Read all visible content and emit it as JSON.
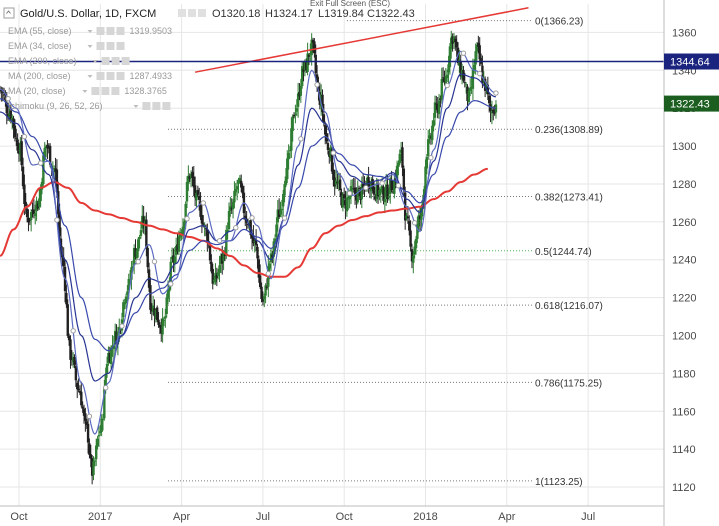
{
  "header": {
    "symbol": "Gold/U.S. Dollar, 1D, FXCM",
    "ohlc": {
      "open": "O1320.18",
      "high": "H1324.17",
      "low": "L1319.84",
      "close": "C1322.43"
    },
    "exit_fullscreen": "Exit Full Screen (ESC)"
  },
  "legend": [
    {
      "label": "EMA (55, close)",
      "value": "1319.9503",
      "value_color": "#1a237e"
    },
    {
      "label": "EMA (34, close)",
      "value": "",
      "value_color": "#9a9a9a"
    },
    {
      "label": "EMA (200, close)",
      "value": "",
      "value_color": "#9a9a9a"
    },
    {
      "label": "MA (200, close)",
      "value": "1287.4933",
      "value_color": "#e53935"
    },
    {
      "label": "MA (20, close)",
      "value": "1328.3765",
      "value_color": "#1a237e"
    },
    {
      "label": "Ichimoku (9, 26, 52, 26)",
      "value": "",
      "value_color": "#9a9a9a"
    }
  ],
  "chart_data": {
    "type": "candlestick",
    "instrument": "Gold/U.S. Dollar",
    "interval": "1D",
    "ylim": [
      1110,
      1375
    ],
    "y_ticks": [
      1120,
      1140,
      1160,
      1180,
      1200,
      1220,
      1240,
      1260,
      1280,
      1300,
      1320,
      1340,
      1360
    ],
    "x_ticks": [
      {
        "label": "Oct",
        "t": 0.7
      },
      {
        "label": "2017",
        "t": 3.7
      },
      {
        "label": "Apr",
        "t": 6.7
      },
      {
        "label": "Jul",
        "t": 9.7
      },
      {
        "label": "Oct",
        "t": 12.7
      },
      {
        "label": "2018",
        "t": 15.7
      },
      {
        "label": "Apr",
        "t": 18.7
      },
      {
        "label": "Jul",
        "t": 21.7
      }
    ],
    "xlim": [
      0,
      24.5
    ],
    "price_anchors": [
      [
        0.0,
        1330
      ],
      [
        0.35,
        1318
      ],
      [
        0.7,
        1300
      ],
      [
        1.0,
        1262
      ],
      [
        1.4,
        1270
      ],
      [
        1.7,
        1300
      ],
      [
        2.0,
        1288
      ],
      [
        2.3,
        1240
      ],
      [
        2.6,
        1190
      ],
      [
        2.9,
        1172
      ],
      [
        3.2,
        1150
      ],
      [
        3.4,
        1128
      ],
      [
        3.7,
        1150
      ],
      [
        4.0,
        1190
      ],
      [
        4.3,
        1200
      ],
      [
        4.7,
        1225
      ],
      [
        5.0,
        1245
      ],
      [
        5.3,
        1260
      ],
      [
        5.6,
        1215
      ],
      [
        6.0,
        1205
      ],
      [
        6.4,
        1240
      ],
      [
        6.7,
        1257
      ],
      [
        7.0,
        1285
      ],
      [
        7.3,
        1270
      ],
      [
        7.6,
        1255
      ],
      [
        7.9,
        1228
      ],
      [
        8.2,
        1240
      ],
      [
        8.5,
        1265
      ],
      [
        8.8,
        1280
      ],
      [
        9.1,
        1262
      ],
      [
        9.4,
        1248
      ],
      [
        9.7,
        1218
      ],
      [
        10.0,
        1240
      ],
      [
        10.3,
        1265
      ],
      [
        10.6,
        1290
      ],
      [
        10.9,
        1320
      ],
      [
        11.2,
        1340
      ],
      [
        11.5,
        1352
      ],
      [
        11.8,
        1325
      ],
      [
        12.1,
        1300
      ],
      [
        12.4,
        1280
      ],
      [
        12.7,
        1270
      ],
      [
        13.0,
        1275
      ],
      [
        13.3,
        1275
      ],
      [
        13.6,
        1282
      ],
      [
        13.9,
        1276
      ],
      [
        14.2,
        1275
      ],
      [
        14.5,
        1280
      ],
      [
        14.8,
        1295
      ],
      [
        15.0,
        1260
      ],
      [
        15.2,
        1243
      ],
      [
        15.5,
        1262
      ],
      [
        15.8,
        1300
      ],
      [
        16.1,
        1320
      ],
      [
        16.4,
        1335
      ],
      [
        16.7,
        1358
      ],
      [
        17.0,
        1340
      ],
      [
        17.3,
        1325
      ],
      [
        17.6,
        1350
      ],
      [
        17.9,
        1332
      ],
      [
        18.1,
        1318
      ],
      [
        18.3,
        1322
      ]
    ],
    "indicators": {
      "ma200": [
        [
          0.0,
          1242
        ],
        [
          0.5,
          1256
        ],
        [
          1.0,
          1268
        ],
        [
          1.5,
          1278
        ],
        [
          2.0,
          1281
        ],
        [
          2.5,
          1278
        ],
        [
          3.0,
          1270
        ],
        [
          3.5,
          1266
        ],
        [
          4.0,
          1264
        ],
        [
          4.5,
          1262
        ],
        [
          5.0,
          1260
        ],
        [
          5.5,
          1258
        ],
        [
          6.0,
          1256
        ],
        [
          6.5,
          1254
        ],
        [
          7.0,
          1252
        ],
        [
          7.5,
          1250
        ],
        [
          8.0,
          1246
        ],
        [
          8.5,
          1242
        ],
        [
          9.0,
          1237
        ],
        [
          9.5,
          1233
        ],
        [
          10.0,
          1231
        ],
        [
          10.5,
          1231
        ],
        [
          11.0,
          1236
        ],
        [
          11.5,
          1246
        ],
        [
          12.0,
          1254
        ],
        [
          12.5,
          1258
        ],
        [
          13.0,
          1261
        ],
        [
          13.5,
          1263
        ],
        [
          14.0,
          1265
        ],
        [
          14.5,
          1266
        ],
        [
          15.0,
          1267
        ],
        [
          15.5,
          1268
        ],
        [
          16.0,
          1272
        ],
        [
          16.5,
          1276
        ],
        [
          17.0,
          1281
        ],
        [
          17.5,
          1285
        ],
        [
          18.0,
          1288
        ]
      ],
      "ema55": [
        [
          0.0,
          1325
        ],
        [
          0.6,
          1318
        ],
        [
          1.2,
          1305
        ],
        [
          1.8,
          1292
        ],
        [
          2.4,
          1258
        ],
        [
          3.0,
          1220
        ],
        [
          3.5,
          1198
        ],
        [
          4.0,
          1192
        ],
        [
          4.5,
          1200
        ],
        [
          5.0,
          1212
        ],
        [
          5.5,
          1222
        ],
        [
          6.0,
          1225
        ],
        [
          6.5,
          1232
        ],
        [
          7.0,
          1245
        ],
        [
          7.5,
          1250
        ],
        [
          8.0,
          1248
        ],
        [
          8.5,
          1250
        ],
        [
          9.0,
          1256
        ],
        [
          9.5,
          1252
        ],
        [
          10.0,
          1246
        ],
        [
          10.5,
          1258
        ],
        [
          11.0,
          1278
        ],
        [
          11.5,
          1300
        ],
        [
          12.0,
          1305
        ],
        [
          12.5,
          1296
        ],
        [
          13.0,
          1290
        ],
        [
          13.5,
          1285
        ],
        [
          14.0,
          1284
        ],
        [
          14.5,
          1282
        ],
        [
          15.0,
          1276
        ],
        [
          15.5,
          1270
        ],
        [
          16.0,
          1285
        ],
        [
          16.5,
          1305
        ],
        [
          17.0,
          1318
        ],
        [
          17.5,
          1324
        ],
        [
          18.3,
          1320
        ]
      ],
      "ema34": [
        [
          0.0,
          1318
        ],
        [
          0.6,
          1312
        ],
        [
          1.2,
          1298
        ],
        [
          1.8,
          1285
        ],
        [
          2.4,
          1240
        ],
        [
          3.0,
          1200
        ],
        [
          3.5,
          1176
        ],
        [
          4.0,
          1180
        ],
        [
          4.5,
          1200
        ],
        [
          5.0,
          1220
        ],
        [
          5.5,
          1230
        ],
        [
          6.0,
          1228
        ],
        [
          6.5,
          1238
        ],
        [
          7.0,
          1256
        ],
        [
          7.5,
          1258
        ],
        [
          8.0,
          1250
        ],
        [
          8.5,
          1255
        ],
        [
          9.0,
          1262
        ],
        [
          9.5,
          1250
        ],
        [
          10.0,
          1240
        ],
        [
          10.5,
          1262
        ],
        [
          11.0,
          1290
        ],
        [
          11.5,
          1320
        ],
        [
          12.0,
          1312
        ],
        [
          12.5,
          1292
        ],
        [
          13.0,
          1284
        ],
        [
          13.5,
          1280
        ],
        [
          14.0,
          1282
        ],
        [
          14.5,
          1286
        ],
        [
          15.0,
          1272
        ],
        [
          15.5,
          1265
        ],
        [
          16.0,
          1292
        ],
        [
          16.5,
          1320
        ],
        [
          17.0,
          1338
        ],
        [
          17.5,
          1336
        ],
        [
          18.3,
          1326
        ]
      ],
      "ma20": [
        [
          0.0,
          1330
        ],
        [
          0.6,
          1320
        ],
        [
          1.2,
          1290
        ],
        [
          1.8,
          1292
        ],
        [
          2.4,
          1230
        ],
        [
          3.0,
          1175
        ],
        [
          3.5,
          1148
        ],
        [
          4.0,
          1175
        ],
        [
          4.5,
          1205
        ],
        [
          5.0,
          1238
        ],
        [
          5.5,
          1248
        ],
        [
          6.0,
          1222
        ],
        [
          6.5,
          1230
        ],
        [
          7.0,
          1265
        ],
        [
          7.5,
          1270
        ],
        [
          8.0,
          1250
        ],
        [
          8.5,
          1250
        ],
        [
          9.0,
          1270
        ],
        [
          9.5,
          1258
        ],
        [
          10.0,
          1230
        ],
        [
          10.5,
          1262
        ],
        [
          11.0,
          1300
        ],
        [
          11.5,
          1340
        ],
        [
          12.0,
          1318
        ],
        [
          12.5,
          1285
        ],
        [
          13.0,
          1274
        ],
        [
          13.5,
          1278
        ],
        [
          14.0,
          1280
        ],
        [
          14.5,
          1285
        ],
        [
          15.0,
          1268
        ],
        [
          15.5,
          1255
        ],
        [
          16.0,
          1298
        ],
        [
          16.5,
          1332
        ],
        [
          17.0,
          1350
        ],
        [
          17.5,
          1340
        ],
        [
          18.3,
          1328
        ]
      ]
    },
    "trendline": {
      "start": [
        7.2,
        1339
      ],
      "end": [
        19.5,
        1373
      ]
    },
    "resistance": {
      "price": 1344.64,
      "label": "1344.64"
    },
    "last_price": {
      "price": 1322.43,
      "label": "1322.43"
    },
    "fibonacci": [
      {
        "ratio": "0",
        "price": 1366.23,
        "label": "0(1366.23)",
        "t_start": 12.8
      },
      {
        "ratio": "0.236",
        "price": 1308.89,
        "label": "0.236(1308.89)",
        "t_start": 6.2
      },
      {
        "ratio": "0.382",
        "price": 1273.41,
        "label": "0.382(1273.41)",
        "t_start": 6.2
      },
      {
        "ratio": "0.5",
        "price": 1244.74,
        "label": "0.5(1244.74)",
        "t_start": 6.2,
        "color": "#4caf50"
      },
      {
        "ratio": "0.618",
        "price": 1216.07,
        "label": "0.618(1216.07)",
        "t_start": 6.2
      },
      {
        "ratio": "0.786",
        "price": 1175.25,
        "label": "0.786(1175.25)",
        "t_start": 6.2
      },
      {
        "ratio": "1",
        "price": 1123.25,
        "label": "1(1123.25)",
        "t_start": 6.2
      }
    ],
    "colors": {
      "up": "#2e7d32",
      "down": "#212121",
      "ma200": "#e53935",
      "ma_blue": "#283593",
      "ema_blue": "#3949ab",
      "trend": "#e53935",
      "resistance": "#1a237e",
      "last_price": "#1b5e20",
      "grid": "#e6e6e6"
    }
  }
}
